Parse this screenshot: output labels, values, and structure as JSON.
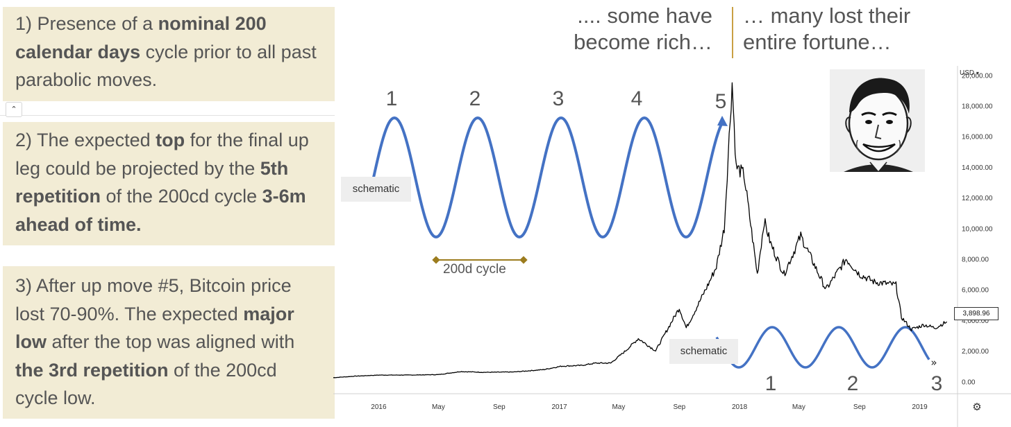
{
  "notes": [
    {
      "parts": [
        {
          "t": "1) Presence of a ",
          "b": false
        },
        {
          "t": "nominal 200 calendar days",
          "b": true
        },
        {
          "t": " cycle prior to all past parabolic moves.",
          "b": false
        }
      ]
    },
    {
      "parts": [
        {
          "t": "2) The expected ",
          "b": false
        },
        {
          "t": "top",
          "b": true
        },
        {
          "t": " for the final up leg could be projected by the ",
          "b": false
        },
        {
          "t": "5th repetition",
          "b": true
        },
        {
          "t": " of the 200cd cycle ",
          "b": false
        },
        {
          "t": "3-6m ahead of time.",
          "b": true
        }
      ]
    },
    {
      "parts": [
        {
          "t": "3) After up move #5, Bitcoin price lost 70-90%. The expected ",
          "b": false
        },
        {
          "t": "major low",
          "b": true
        },
        {
          "t": " after the top was aligned with ",
          "b": false
        },
        {
          "t": "the 3rd repetition",
          "b": true
        },
        {
          "t": " of the 200cd cycle low.",
          "b": false
        }
      ]
    }
  ],
  "quotes": {
    "left": ".... some have become rich…",
    "right": "… many lost their entire fortune…"
  },
  "collapse_icon": "chevron-up-icon",
  "annotations": {
    "schematic_top": "schematic",
    "schematic_bottom": "schematic",
    "cycle_label": "200d cycle",
    "top_cycle_numbers": [
      "1",
      "2",
      "3",
      "4",
      "5"
    ],
    "bottom_cycle_numbers": [
      "1",
      "2",
      "3"
    ]
  },
  "price_scale": {
    "currency": "USD",
    "last_price": "3,898.96"
  },
  "colors": {
    "note_bg": "#f2ecd5",
    "schematic_wave": "#4472c4",
    "price_line": "#000000",
    "cycle_marker": "#9c7c1e",
    "quote_divider": "#c9a043"
  },
  "chart_data": {
    "type": "line",
    "title": "",
    "series": [
      {
        "name": "",
        "x": [
          "2015-10-01",
          "2015-11-15",
          "2016-01-01",
          "2016-03-01",
          "2016-05-01",
          "2016-06-15",
          "2016-08-01",
          "2016-10-01",
          "2016-12-01",
          "2017-01-05",
          "2017-02-15",
          "2017-03-15",
          "2017-04-15",
          "2017-05-15",
          "2017-06-10",
          "2017-07-15",
          "2017-08-01",
          "2017-09-01",
          "2017-09-15",
          "2017-10-01",
          "2017-11-01",
          "2017-11-15",
          "2017-12-01",
          "2017-12-17",
          "2017-12-25",
          "2018-01-10",
          "2018-02-06",
          "2018-02-20",
          "2018-03-05",
          "2018-04-01",
          "2018-05-05",
          "2018-06-25",
          "2018-08-05",
          "2018-09-01",
          "2018-10-01",
          "2018-11-14",
          "2018-11-25",
          "2018-12-15",
          "2019-01-10",
          "2019-02-01",
          "2019-02-25"
        ],
        "y": [
          250,
          350,
          420,
          420,
          450,
          650,
          600,
          620,
          780,
          1000,
          1050,
          1200,
          1200,
          2000,
          2800,
          2000,
          3000,
          4800,
          3500,
          4500,
          6500,
          7500,
          10000,
          19500,
          14000,
          13500,
          7000,
          10500,
          9000,
          7000,
          9500,
          6000,
          8000,
          7000,
          6500,
          6300,
          4200,
          3400,
          3700,
          3500,
          3898.96
        ]
      }
    ],
    "schematic_cycles": {
      "period_days": 200,
      "top_repetitions": 5,
      "bottom_repetitions": 3
    },
    "x_ticks": [
      "2016",
      "May",
      "Sep",
      "2017",
      "May",
      "Sep",
      "2018",
      "May",
      "Sep",
      "2019"
    ],
    "x_tick_dates": [
      "2016-01-01",
      "2016-05-01",
      "2016-09-01",
      "2017-01-01",
      "2017-05-01",
      "2017-09-01",
      "2018-01-01",
      "2018-05-01",
      "2018-09-01",
      "2019-01-01"
    ],
    "y_ticks": [
      "0.00",
      "2,000.00",
      "4,000.00",
      "6,000.00",
      "8,000.00",
      "10,000.00",
      "12,000.00",
      "14,000.00",
      "16,000.00",
      "18,000.00",
      "20,000.00"
    ],
    "y_tick_values": [
      0,
      2000,
      4000,
      6000,
      8000,
      10000,
      12000,
      14000,
      16000,
      18000,
      20000
    ],
    "xlim": [
      "2015-10-01",
      "2019-03-20"
    ],
    "ylim": [
      -300,
      20600
    ],
    "grid": false,
    "legend": "none"
  }
}
